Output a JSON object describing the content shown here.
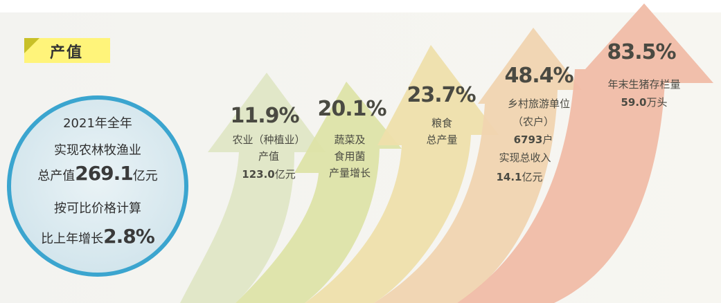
{
  "header": {
    "tag_label": "产值"
  },
  "summary": {
    "line1": "2021年全年",
    "line2": "实现农林牧渔业",
    "line3_pre": "总产值",
    "line3_value": "269.1",
    "line3_unit": "亿元",
    "line4": "按可比价格计算",
    "line5_pre": "比上年增长",
    "line5_value": "2.8%"
  },
  "arrows": [
    {
      "pct": "11.9%",
      "l1": "农业（种植业）",
      "l2": "产值",
      "l3_value": "123.0",
      "l3_unit": "亿元",
      "color": "#dbe4bf"
    },
    {
      "pct": "20.1%",
      "l1": "蔬菜及",
      "l2": "食用菌",
      "l3": "产量增长",
      "color": "#d9e0a3"
    },
    {
      "pct": "23.7%",
      "l1": "粮食",
      "l2": "总产量",
      "color": "#ecdea8"
    },
    {
      "pct": "48.4%",
      "l1": "乡村旅游单位",
      "l2": "（农户）",
      "l3_value": "6793",
      "l3_unit": "户",
      "l4": "实现总收入",
      "l5_value": "14.1",
      "l5_unit": "亿元",
      "color": "#eed2ae"
    },
    {
      "pct": "83.5%",
      "l1": "年末生猪存栏量",
      "l2_value": "59.0",
      "l2_unit": "万头",
      "color": "#eebba4"
    }
  ]
}
